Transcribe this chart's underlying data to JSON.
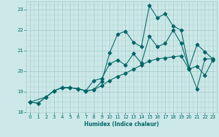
{
  "xlabel": "Humidex (Indice chaleur)",
  "bg_color": "#cce8e8",
  "grid_color": "#aacccc",
  "line_color": "#006666",
  "xlim": [
    -0.5,
    23.5
  ],
  "ylim": [
    18.0,
    23.4
  ],
  "yticks": [
    18,
    19,
    20,
    21,
    22,
    23
  ],
  "xticks": [
    0,
    1,
    2,
    3,
    4,
    5,
    6,
    7,
    8,
    9,
    10,
    11,
    12,
    13,
    14,
    15,
    16,
    17,
    18,
    19,
    20,
    21,
    22,
    23
  ],
  "line1_x": [
    0,
    1,
    2,
    3,
    4,
    5,
    6,
    7,
    8,
    9,
    10,
    11,
    12,
    13,
    14,
    15,
    16,
    17,
    18,
    19,
    20,
    21,
    22,
    23
  ],
  "line1_y": [
    18.5,
    18.45,
    18.75,
    19.05,
    19.2,
    19.2,
    19.15,
    19.05,
    19.1,
    19.5,
    20.9,
    21.8,
    21.95,
    21.4,
    21.2,
    23.2,
    22.6,
    22.8,
    22.2,
    22.0,
    20.15,
    21.3,
    20.95,
    20.6
  ],
  "line2_x": [
    0,
    1,
    2,
    3,
    4,
    5,
    6,
    7,
    8,
    9,
    10,
    11,
    12,
    13,
    14,
    15,
    16,
    17,
    18,
    19,
    20,
    21,
    22,
    23
  ],
  "line2_y": [
    18.5,
    18.45,
    18.75,
    19.05,
    19.2,
    19.2,
    19.15,
    19.05,
    19.55,
    19.65,
    20.35,
    20.55,
    20.3,
    20.85,
    20.4,
    21.7,
    21.2,
    21.35,
    22.0,
    21.35,
    20.15,
    19.15,
    20.6,
    20.6
  ],
  "line3_x": [
    0,
    2,
    3,
    4,
    5,
    6,
    7,
    8,
    9,
    10,
    11,
    12,
    13,
    14,
    15,
    16,
    17,
    18,
    19,
    20,
    21,
    22,
    23
  ],
  "line3_y": [
    18.5,
    18.75,
    19.05,
    19.2,
    19.2,
    19.15,
    19.05,
    19.1,
    19.3,
    19.55,
    19.75,
    19.9,
    20.1,
    20.3,
    20.5,
    20.6,
    20.65,
    20.7,
    20.75,
    20.1,
    20.25,
    19.8,
    20.55
  ],
  "markersize": 2.5,
  "linewidth": 0.8
}
